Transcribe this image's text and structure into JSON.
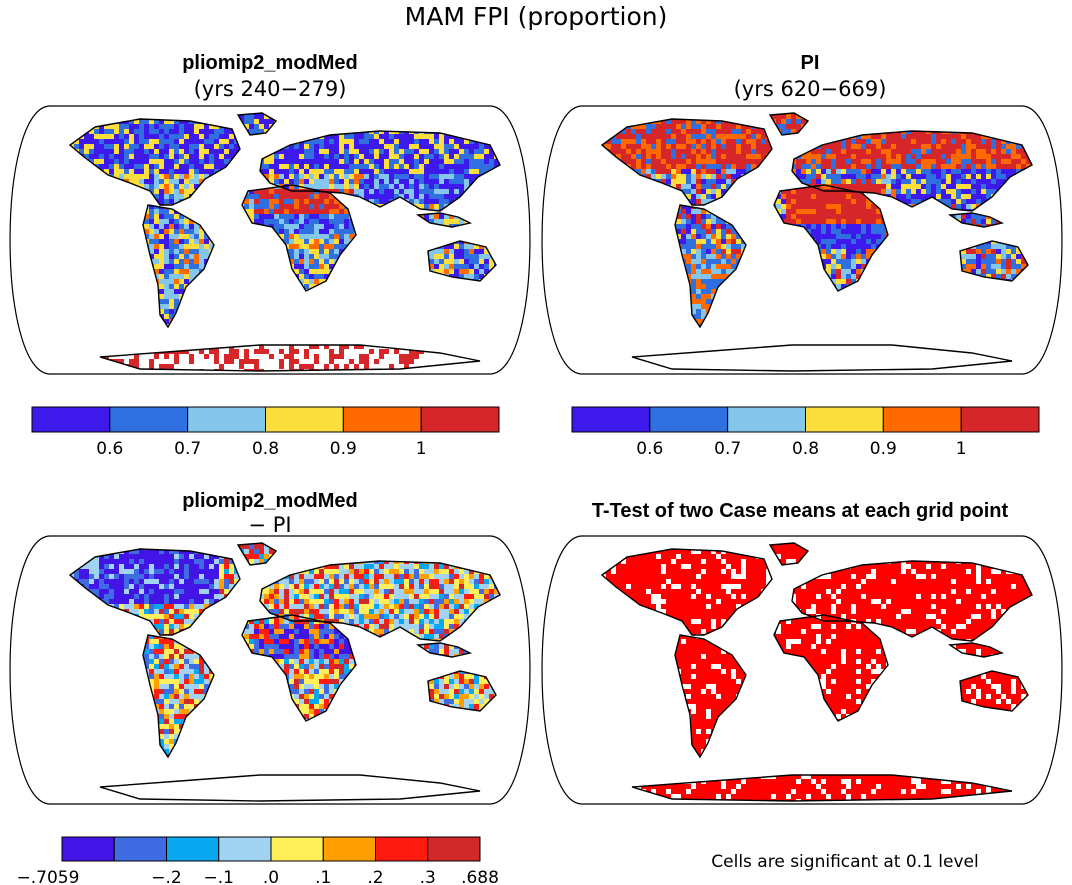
{
  "figure": {
    "title": "MAM FPI (proportion)",
    "note": "Cells are significant at 0.1 level"
  },
  "panels": [
    {
      "id": "modmed",
      "title": "pliomip2_modMed",
      "subtitle": "(yrs 240−279)"
    },
    {
      "id": "pi",
      "title": "PI",
      "subtitle": "(yrs 620−669)"
    },
    {
      "id": "diff",
      "title": "pliomip2_modMed",
      "subtitle": "− PI"
    },
    {
      "id": "ttest",
      "title": "T-Test of two Case means at each grid point",
      "subtitle": ""
    }
  ],
  "colorbars": {
    "fpi": {
      "colors": [
        "#3d1aeb",
        "#2f6fe0",
        "#84c6ec",
        "#fcdf3c",
        "#ff6a00",
        "#d7262a"
      ],
      "labels": [
        "0.6",
        "0.7",
        "0.8",
        "0.9",
        "1"
      ]
    },
    "diff": {
      "colors": [
        "#4215e6",
        "#3f6be3",
        "#0aa7f1",
        "#a3d3f2",
        "#ffef5a",
        "#ff9f00",
        "#ff1a12",
        "#d0282b"
      ],
      "labels": [
        "−.7059",
        "−.2",
        "−.1",
        ".0",
        ".1",
        ".2",
        ".3",
        ".688"
      ]
    }
  },
  "colors": {
    "significant": "#ff0000",
    "land_outline": "#000000",
    "ocean": "#ffffff"
  }
}
